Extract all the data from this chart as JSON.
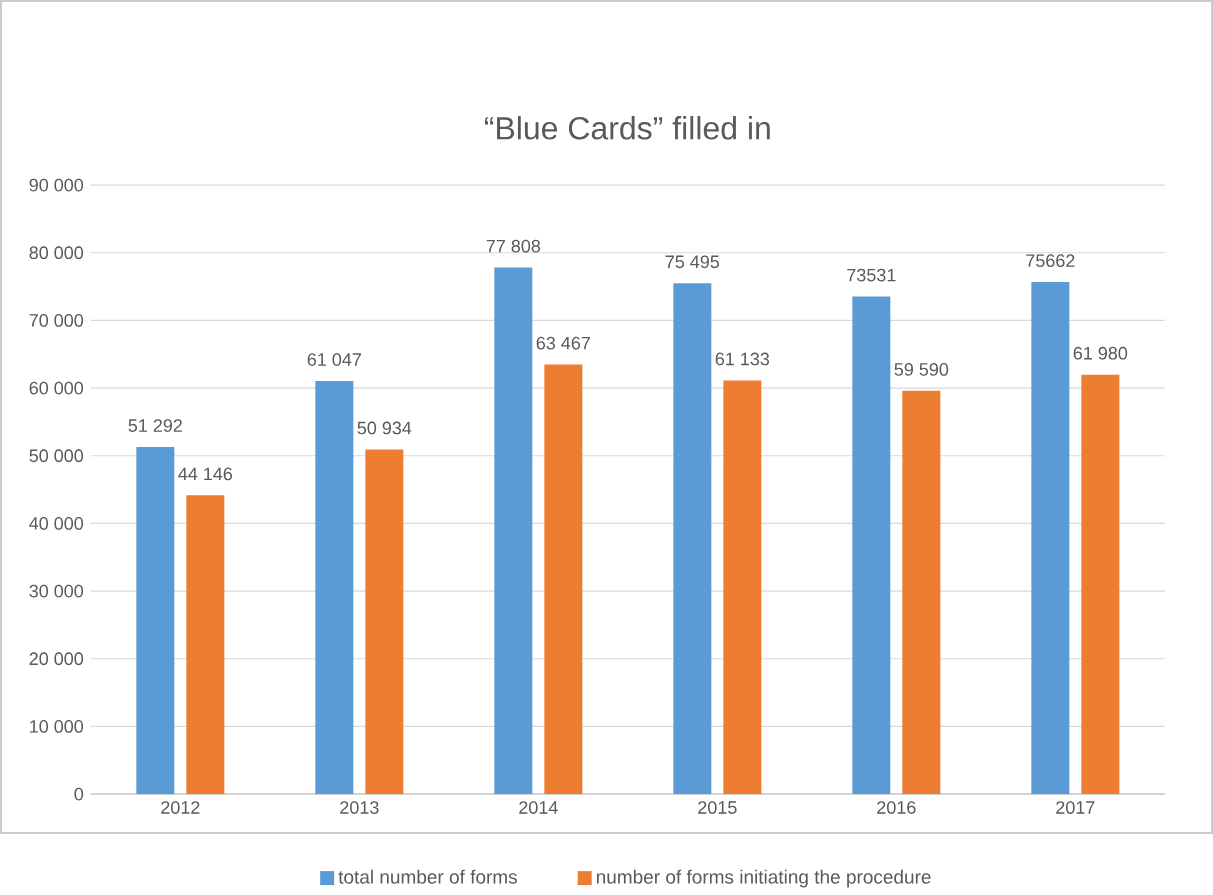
{
  "chart_data": {
    "type": "bar",
    "title": "“Blue Cards” filled in",
    "categories": [
      "2012",
      "2013",
      "2014",
      "2015",
      "2016",
      "2017"
    ],
    "series": [
      {
        "name": "total number of forms",
        "color": "#5b9bd5",
        "values": [
          51292,
          61047,
          77808,
          75495,
          73531,
          75662
        ],
        "value_labels": [
          "51 292",
          "61 047",
          "77 808",
          "75 495",
          "73531",
          "75662"
        ]
      },
      {
        "name": "number of forms initiating the procedure",
        "color": "#ed7d31",
        "values": [
          44146,
          50934,
          63467,
          61133,
          59590,
          61980
        ],
        "value_labels": [
          "44 146",
          "50 934",
          "63 467",
          "61 133",
          "59 590",
          "61 980"
        ]
      }
    ],
    "ylim": [
      0,
      90000
    ],
    "yticks": [
      {
        "value": 0,
        "label": "0"
      },
      {
        "value": 10000,
        "label": "10 000"
      },
      {
        "value": 20000,
        "label": "20 000"
      },
      {
        "value": 30000,
        "label": "30 000"
      },
      {
        "value": 40000,
        "label": "40 000"
      },
      {
        "value": 50000,
        "label": "50 000"
      },
      {
        "value": 60000,
        "label": "60 000"
      },
      {
        "value": 70000,
        "label": "70 000"
      },
      {
        "value": 80000,
        "label": "80 000"
      },
      {
        "value": 90000,
        "label": "90 000"
      }
    ],
    "grid": "y",
    "legend": "bottom"
  }
}
